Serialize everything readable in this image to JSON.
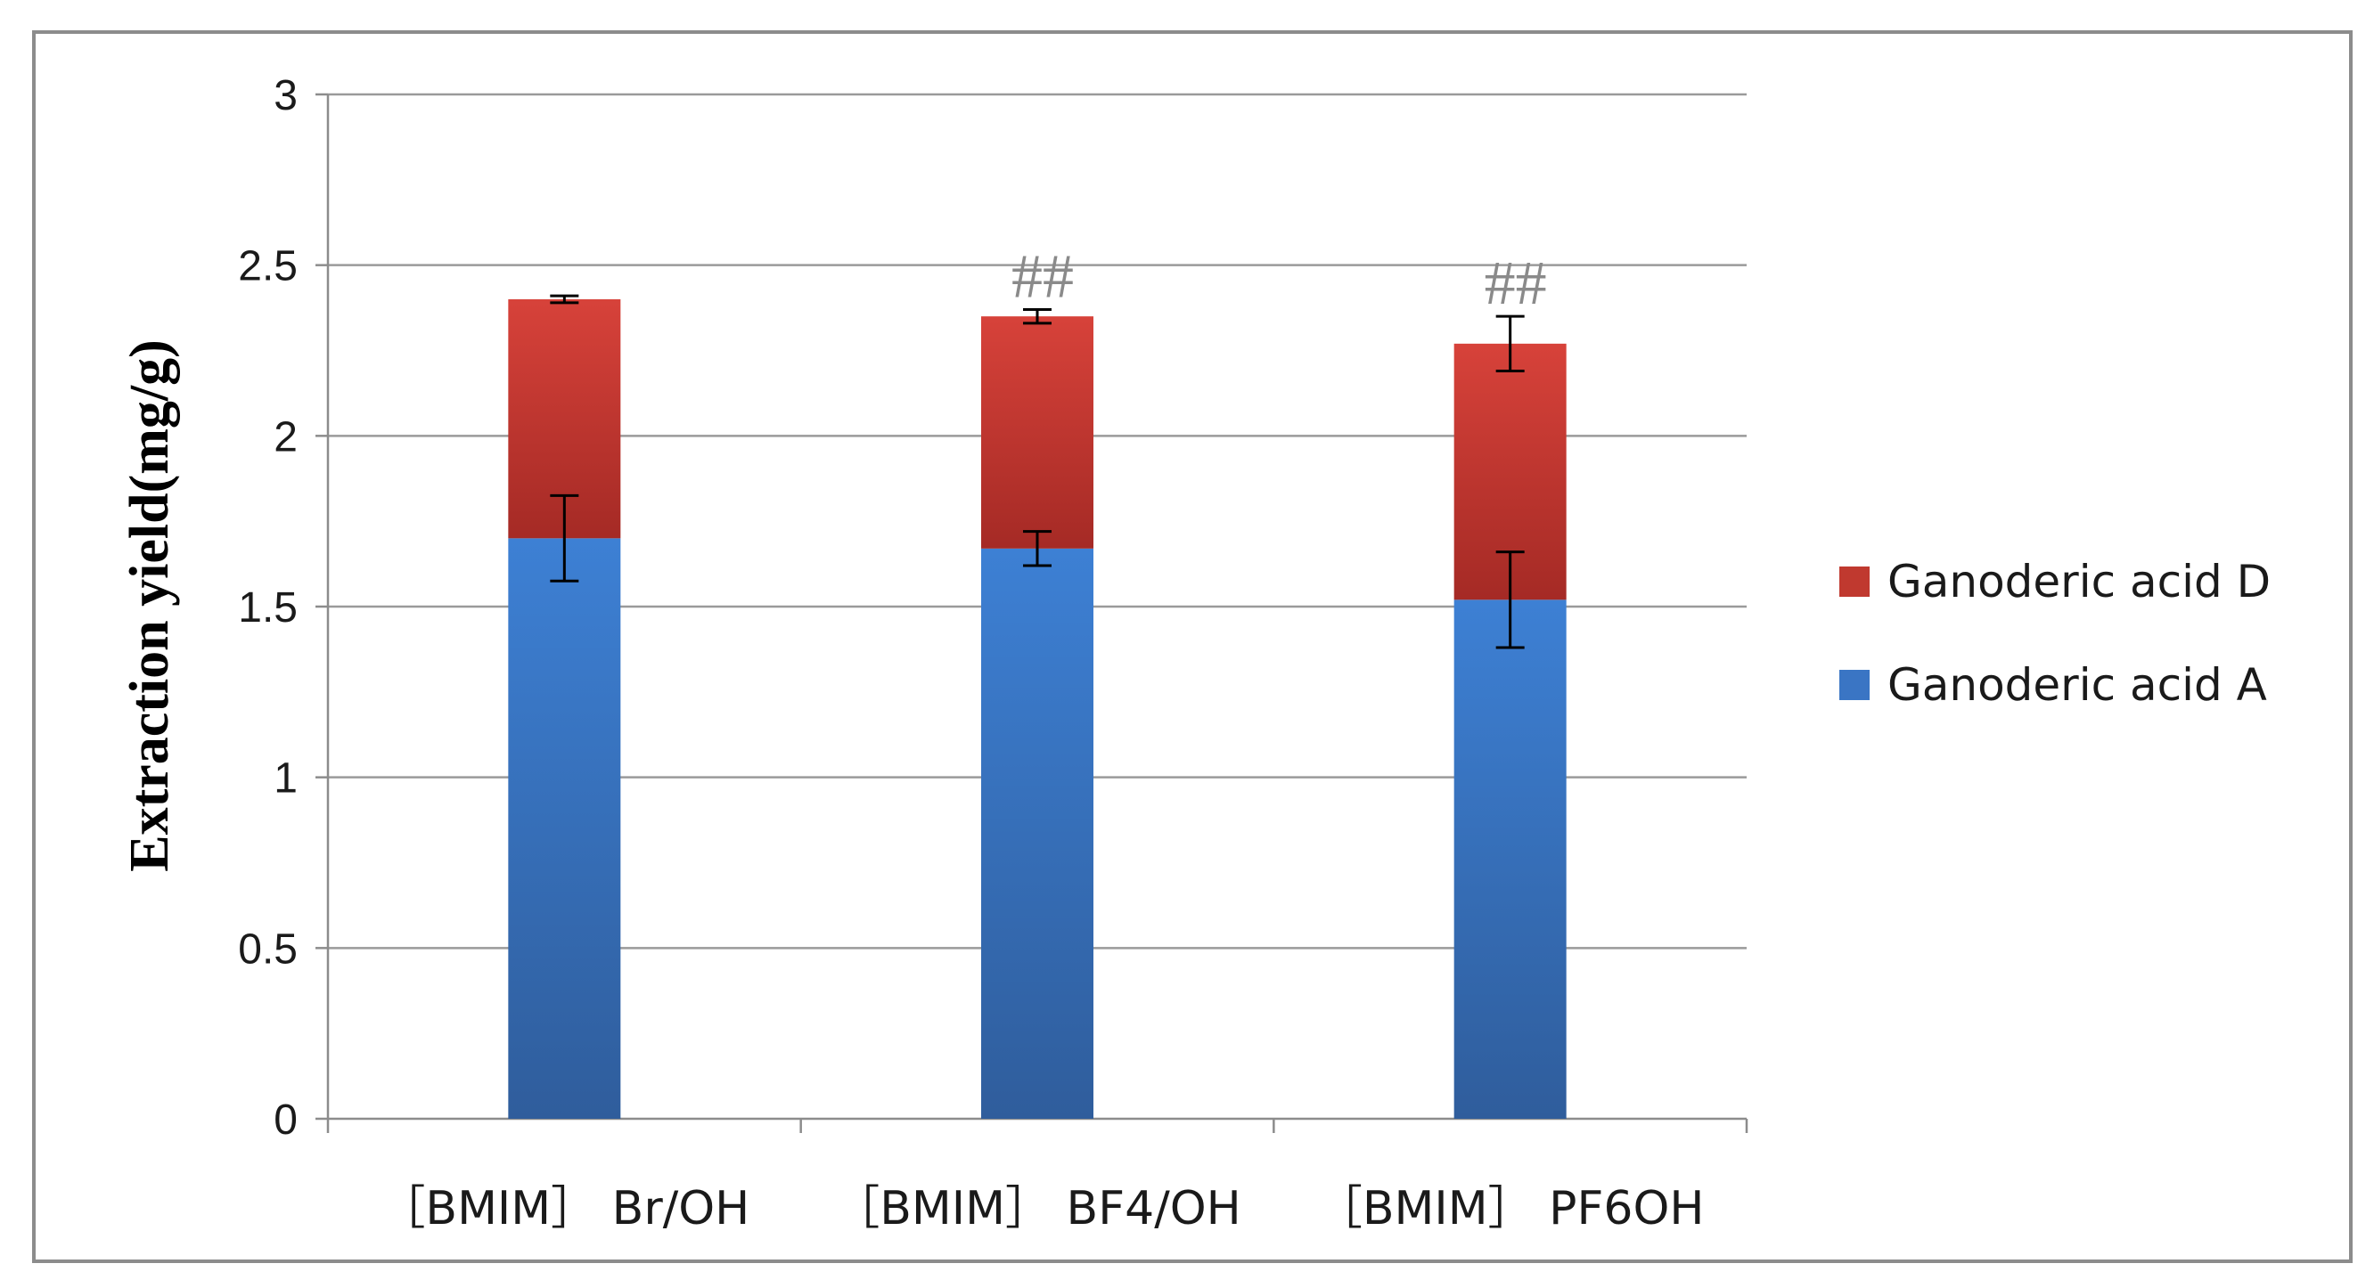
{
  "chart_data": {
    "type": "bar",
    "stacked": true,
    "title": "",
    "xlabel": "",
    "ylabel": "Extraction yield(mg/g)",
    "ylim": [
      0,
      3
    ],
    "yticks": [
      "0",
      "0.5",
      "1",
      "1.5",
      "2",
      "2.5",
      "3"
    ],
    "grid": true,
    "legend_position": "right",
    "categories": [
      "［BMIM］ Br/OH",
      "［BMIM］ BF4/OH",
      "［BMIM］ PF6OH"
    ],
    "series": [
      {
        "name": "Ganoderic acid A",
        "color": "#3a75c4",
        "values": [
          1.7,
          1.67,
          1.52
        ],
        "error": [
          0.125,
          0.05,
          0.14
        ]
      },
      {
        "name": "Ganoderic acid D",
        "color": "#c0392f",
        "values": [
          0.7,
          0.68,
          0.75
        ],
        "error": [
          0.01,
          0.02,
          0.08
        ]
      }
    ],
    "totals": [
      2.4,
      2.35,
      2.27
    ],
    "annotations": [
      "",
      "##",
      "##"
    ]
  }
}
